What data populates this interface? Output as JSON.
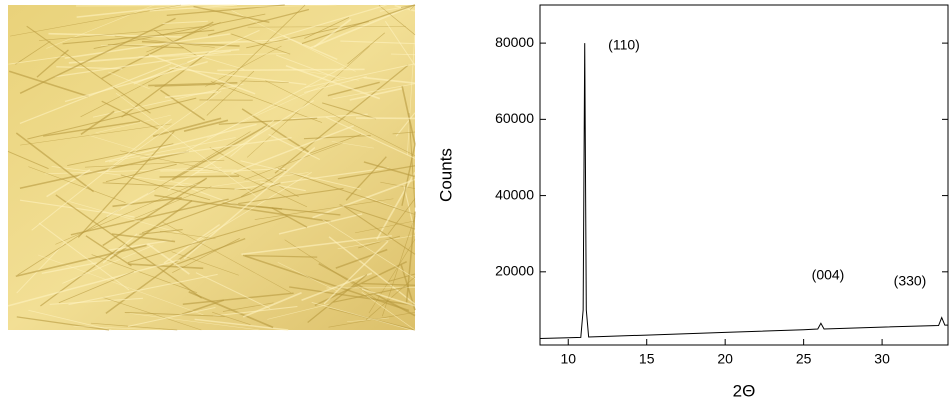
{
  "chart_data": {
    "type": "line",
    "x_label": "2Θ",
    "y_label": "Counts",
    "annotations": [
      "(110)",
      "(004)",
      "(330)"
    ],
    "x": [
      8.2,
      10,
      10.8,
      10.95,
      11.05,
      11.15,
      11.3,
      12,
      15,
      20,
      25,
      25.9,
      26.1,
      26.3,
      30,
      33.6,
      33.8,
      34.0,
      34.2
    ],
    "series": [
      {
        "color": "#000000",
        "values": [
          2500,
          2700,
          2800,
          10000,
          80000,
          10000,
          2900,
          3000,
          3400,
          4100,
          4800,
          5000,
          6500,
          5000,
          5500,
          5900,
          8000,
          6000,
          6000
        ]
      }
    ],
    "xlim": [
      8.2,
      34.2
    ],
    "xticks": [
      10,
      15,
      20,
      25,
      30
    ],
    "ylim": [
      800,
      90000
    ],
    "yticks": [
      20000,
      40000,
      60000,
      80000
    ]
  }
}
